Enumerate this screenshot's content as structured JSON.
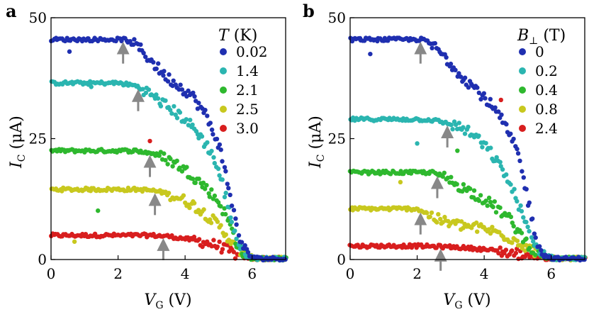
{
  "figure": {
    "panels_note": "two panels"
  },
  "chart_data": [
    {
      "type": "scatter",
      "panel_label": "a",
      "xlabel": "V_G (V)",
      "xlabel_main": "V",
      "xlabel_sub": "G",
      "xlabel_unit": "(V)",
      "ylabel_main": "I",
      "ylabel_sub": "C",
      "ylabel_unit": "(μA)",
      "xlim": [
        0,
        7
      ],
      "ylim": [
        0,
        50
      ],
      "xticks": [
        0,
        2,
        4,
        6
      ],
      "yticks": [
        0,
        25,
        50
      ],
      "grid": false,
      "legend": {
        "title_main": "T",
        "title_unit": "(K)",
        "placement": "top-right"
      },
      "series": [
        {
          "name": "0.02",
          "color": "#1f2fb0",
          "points": [
            [
              0,
              45.5
            ],
            [
              0.5,
              45.5
            ],
            [
              1.0,
              45.5
            ],
            [
              1.5,
              45.5
            ],
            [
              2.0,
              45.5
            ],
            [
              2.2,
              45.5
            ],
            [
              2.6,
              44
            ],
            [
              3.0,
              41
            ],
            [
              3.4,
              38
            ],
            [
              3.8,
              36
            ],
            [
              4.2,
              34
            ],
            [
              4.6,
              30
            ],
            [
              5.0,
              24
            ],
            [
              5.3,
              15
            ],
            [
              5.5,
              8
            ],
            [
              5.7,
              3
            ],
            [
              5.9,
              0.8
            ],
            [
              6.2,
              0.2
            ],
            [
              7.0,
              0.2
            ]
          ],
          "arrow_x": 2.15
        },
        {
          "name": "1.4",
          "color": "#2bb5b0",
          "points": [
            [
              0,
              36.5
            ],
            [
              0.5,
              36.5
            ],
            [
              1.0,
              36.5
            ],
            [
              1.5,
              36.5
            ],
            [
              2.0,
              36.5
            ],
            [
              2.5,
              36
            ],
            [
              2.8,
              35
            ],
            [
              3.2,
              33
            ],
            [
              3.6,
              31
            ],
            [
              4.0,
              29
            ],
            [
              4.4,
              26
            ],
            [
              4.8,
              22
            ],
            [
              5.1,
              16
            ],
            [
              5.4,
              8
            ],
            [
              5.6,
              3
            ],
            [
              5.8,
              0.8
            ],
            [
              6.2,
              0.2
            ],
            [
              7.0,
              0.2
            ]
          ],
          "arrow_x": 2.6
        },
        {
          "name": "2.1",
          "color": "#2eb82e",
          "points": [
            [
              0,
              22.5
            ],
            [
              0.5,
              22.5
            ],
            [
              1.0,
              22.5
            ],
            [
              1.5,
              22.5
            ],
            [
              2.0,
              22.5
            ],
            [
              2.5,
              22.5
            ],
            [
              3.0,
              22
            ],
            [
              3.4,
              21
            ],
            [
              3.8,
              19.5
            ],
            [
              4.2,
              17.5
            ],
            [
              4.6,
              15
            ],
            [
              5.0,
              12
            ],
            [
              5.3,
              8
            ],
            [
              5.5,
              4
            ],
            [
              5.7,
              1.5
            ],
            [
              6.0,
              0.2
            ],
            [
              7.0,
              0.2
            ]
          ],
          "arrow_x": 2.95
        },
        {
          "name": "2.5",
          "color": "#c8c81e",
          "points": [
            [
              0,
              14.5
            ],
            [
              0.5,
              14.5
            ],
            [
              1.0,
              14.5
            ],
            [
              1.5,
              14.5
            ],
            [
              2.0,
              14.5
            ],
            [
              2.5,
              14.5
            ],
            [
              3.0,
              14.3
            ],
            [
              3.4,
              13.8
            ],
            [
              3.8,
              12.8
            ],
            [
              4.2,
              11.5
            ],
            [
              4.6,
              9.5
            ],
            [
              5.0,
              7
            ],
            [
              5.3,
              4.5
            ],
            [
              5.5,
              2.5
            ],
            [
              5.8,
              1
            ],
            [
              6.1,
              0.2
            ],
            [
              7.0,
              0.2
            ]
          ],
          "arrow_x": 3.1
        },
        {
          "name": "3.0",
          "color": "#d81e1e",
          "points": [
            [
              0,
              5
            ],
            [
              0.5,
              5
            ],
            [
              1.0,
              5
            ],
            [
              1.5,
              5
            ],
            [
              2.0,
              5
            ],
            [
              2.5,
              5
            ],
            [
              3.0,
              5
            ],
            [
              3.5,
              4.8
            ],
            [
              4.0,
              4.3
            ],
            [
              4.5,
              3.7
            ],
            [
              5.0,
              2.8
            ],
            [
              5.3,
              1.8
            ],
            [
              5.6,
              0.8
            ],
            [
              6.0,
              0.2
            ],
            [
              7.0,
              0.2
            ]
          ],
          "arrow_x": 3.35
        }
      ],
      "outliers": [
        [
          0.55,
          43
        ],
        [
          1.2,
          35.7
        ],
        [
          1.4,
          10.1
        ],
        [
          0.7,
          3.7
        ],
        [
          2.95,
          24.5
        ]
      ]
    },
    {
      "type": "scatter",
      "panel_label": "b",
      "xlabel": "V_G (V)",
      "xlabel_main": "V",
      "xlabel_sub": "G",
      "xlabel_unit": "(V)",
      "ylabel_main": "I",
      "ylabel_sub": "C",
      "ylabel_unit": "(μA)",
      "xlim": [
        0,
        7
      ],
      "ylim": [
        0,
        50
      ],
      "xticks": [
        0,
        2,
        4,
        6
      ],
      "yticks": [
        0,
        25,
        50
      ],
      "grid": false,
      "legend": {
        "title_main": "B",
        "title_sub": "⊥",
        "title_unit": "(T)",
        "placement": "top-right"
      },
      "series": [
        {
          "name": "0",
          "color": "#1f2fb0",
          "points": [
            [
              0,
              45.5
            ],
            [
              0.5,
              45.5
            ],
            [
              1.0,
              45.5
            ],
            [
              1.5,
              45.5
            ],
            [
              2.0,
              45.5
            ],
            [
              2.2,
              45.5
            ],
            [
              2.6,
              43.5
            ],
            [
              3.0,
              40.5
            ],
            [
              3.4,
              37.5
            ],
            [
              3.8,
              35
            ],
            [
              4.2,
              32
            ],
            [
              4.6,
              28
            ],
            [
              5.0,
              22
            ],
            [
              5.2,
              16
            ],
            [
              5.4,
              9
            ],
            [
              5.6,
              3.5
            ],
            [
              5.8,
              0.8
            ],
            [
              6.1,
              0.2
            ],
            [
              7.0,
              0.2
            ]
          ],
          "arrow_x": 2.1
        },
        {
          "name": "0.2",
          "color": "#2bb5b0",
          "points": [
            [
              0,
              29
            ],
            [
              0.5,
              29
            ],
            [
              1.0,
              29
            ],
            [
              1.5,
              29
            ],
            [
              2.0,
              29
            ],
            [
              2.5,
              28.8
            ],
            [
              3.0,
              28
            ],
            [
              3.4,
              27
            ],
            [
              3.8,
              25
            ],
            [
              4.2,
              22
            ],
            [
              4.6,
              18
            ],
            [
              5.0,
              12
            ],
            [
              5.3,
              6
            ],
            [
              5.5,
              3
            ],
            [
              5.8,
              1
            ],
            [
              6.1,
              0.2
            ],
            [
              7.0,
              0.2
            ]
          ],
          "arrow_x": 2.9
        },
        {
          "name": "0.4",
          "color": "#2eb82e",
          "points": [
            [
              0,
              18
            ],
            [
              0.5,
              18
            ],
            [
              1.0,
              18
            ],
            [
              1.5,
              18
            ],
            [
              2.0,
              18
            ],
            [
              2.5,
              18
            ],
            [
              2.8,
              17
            ],
            [
              3.2,
              15.5
            ],
            [
              3.6,
              14
            ],
            [
              4.0,
              12.5
            ],
            [
              4.4,
              10.5
            ],
            [
              4.8,
              8
            ],
            [
              5.1,
              5
            ],
            [
              5.4,
              2.5
            ],
            [
              5.7,
              0.8
            ],
            [
              6.0,
              0.2
            ],
            [
              7.0,
              0.2
            ]
          ],
          "arrow_x": 2.6
        },
        {
          "name": "0.8",
          "color": "#c8c81e",
          "points": [
            [
              0,
              10.5
            ],
            [
              0.5,
              10.5
            ],
            [
              1.0,
              10.5
            ],
            [
              1.5,
              10.5
            ],
            [
              2.0,
              10.5
            ],
            [
              2.3,
              9.5
            ],
            [
              2.7,
              8
            ],
            [
              3.2,
              7.2
            ],
            [
              3.7,
              6.7
            ],
            [
              4.2,
              6
            ],
            [
              4.6,
              5
            ],
            [
              5.0,
              3.8
            ],
            [
              5.3,
              2.5
            ],
            [
              5.6,
              1.2
            ],
            [
              5.9,
              0.4
            ],
            [
              6.2,
              0.2
            ],
            [
              7.0,
              0.2
            ]
          ],
          "arrow_x": 2.1
        },
        {
          "name": "2.4",
          "color": "#d81e1e",
          "points": [
            [
              0,
              2.8
            ],
            [
              0.5,
              2.8
            ],
            [
              1.0,
              2.8
            ],
            [
              1.5,
              2.8
            ],
            [
              2.0,
              2.8
            ],
            [
              2.5,
              2.7
            ],
            [
              3.0,
              2.6
            ],
            [
              3.5,
              2.4
            ],
            [
              4.0,
              2.1
            ],
            [
              4.5,
              1.7
            ],
            [
              5.0,
              1.2
            ],
            [
              5.4,
              0.7
            ],
            [
              5.8,
              0.3
            ],
            [
              6.2,
              0.2
            ],
            [
              7.0,
              0.2
            ]
          ],
          "arrow_x": 2.7
        }
      ],
      "outliers": [
        [
          0.6,
          42.5
        ],
        [
          2.0,
          24
        ],
        [
          3.2,
          22.5
        ],
        [
          1.5,
          16
        ],
        [
          4.5,
          33
        ]
      ]
    }
  ]
}
